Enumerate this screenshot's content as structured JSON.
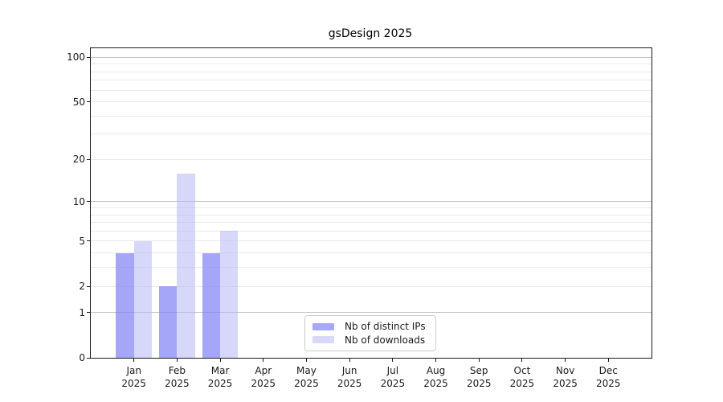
{
  "title": "gsDesign 2025",
  "chart_data": {
    "type": "bar",
    "title": "gsDesign 2025",
    "categories": [
      "Jan",
      "Feb",
      "Mar",
      "Apr",
      "May",
      "Jun",
      "Jul",
      "Aug",
      "Sep",
      "Oct",
      "Nov",
      "Dec"
    ],
    "x_tick_year": "2025",
    "series": [
      {
        "name": "Nb of distinct IPs",
        "color": "rgba(132,132,246,0.72)",
        "solid_color": "#a8a8f8",
        "values": [
          4,
          2,
          4,
          0,
          0,
          0,
          0,
          0,
          0,
          0,
          0,
          0
        ]
      },
      {
        "name": "Nb of downloads",
        "color": "rgba(183,183,245,0.55)",
        "solid_color": "#d8d8f8",
        "values": [
          5,
          16,
          6,
          0,
          0,
          0,
          0,
          0,
          0,
          0,
          0,
          0
        ]
      }
    ],
    "xlabel": "",
    "ylabel": "",
    "yscale": "log1p",
    "ylim": [
      0,
      115
    ],
    "y_ticks": [
      0,
      1,
      2,
      5,
      10,
      20,
      50,
      100
    ],
    "grid_major": [
      1,
      10,
      100
    ],
    "grid_minor": [
      2,
      3,
      4,
      5,
      6,
      7,
      8,
      9,
      20,
      30,
      40,
      50,
      60,
      70,
      80,
      90
    ],
    "legend_position": "lower center",
    "grid": "on"
  },
  "colors": {
    "background": "#ffffff",
    "axis": "#1a1a1a",
    "grid_major": "#c3c3c3",
    "grid_minor": "#e9e9ee",
    "bar_distinct_ips": "#a8a8f8",
    "bar_downloads": "#d8d8f8",
    "legend_border": "#cccccc"
  }
}
